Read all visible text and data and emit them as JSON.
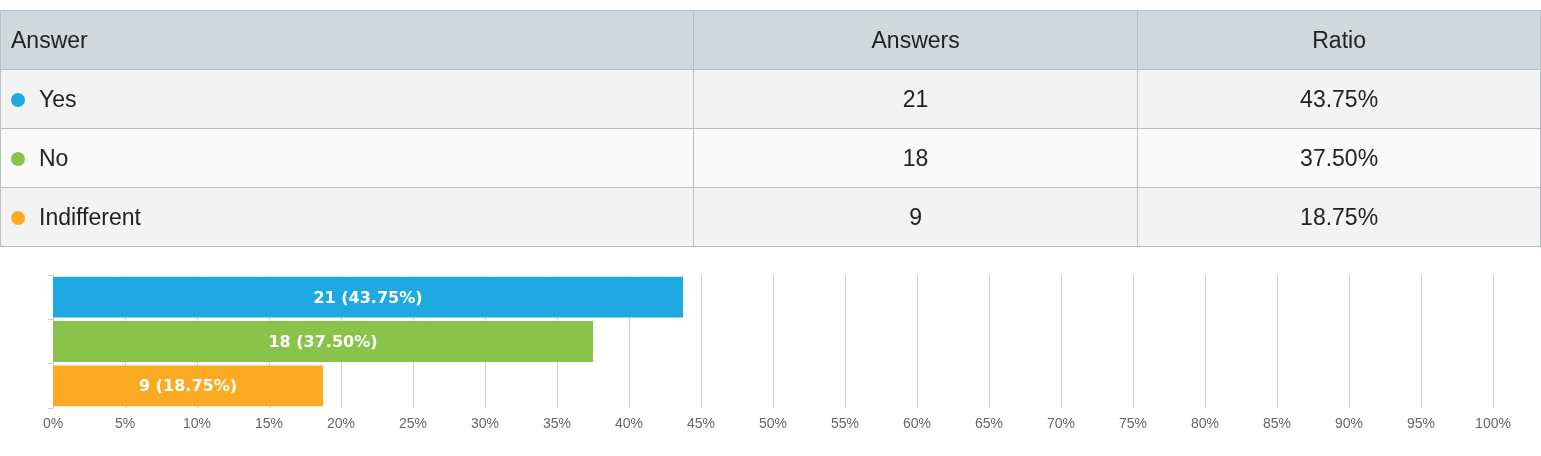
{
  "chart_data": [
    {
      "type": "other",
      "ylabel": "Answer",
      "data_labels": true,
      "categories": [
        "Yes",
        "No",
        "Indifferent"
      ],
      "colors": [
        "#1eaae1",
        "#8bc34a",
        "#fbab22"
      ],
      "series": [
        {
          "name": "Answers",
          "colors": [
            "#f3f3f3",
            "#fafafa",
            "#f3f3f3"
          ],
          "values": [
            21,
            18,
            9
          ]
        },
        {
          "name": "Ratio",
          "colors": [
            "#f3f3f3",
            "#fafafa",
            "#f3f3f3"
          ],
          "values": [
            43.75,
            37.5,
            18.75
          ],
          "value_labels": [
            "43.75%",
            "37.50%",
            "18.75%"
          ]
        }
      ]
    },
    {
      "type": "bar",
      "orientation": "horizontal",
      "categories": [
        null,
        null,
        null
      ],
      "tick_labels": "x",
      "grid": "x",
      "series": [
        {
          "colors": [
            "#1eaae1",
            "#8bc34a",
            "#fbab22"
          ],
          "values": [
            43.75,
            37.5,
            18.75
          ],
          "value_labels": [
            "21 (43.75%)",
            "18 (37.50%)",
            "9 (18.75%)"
          ]
        }
      ],
      "xlim": [
        0,
        100
      ],
      "xticks": [
        {
          "value": 0,
          "label": "0%"
        },
        {
          "value": 5,
          "label": "5%"
        },
        {
          "value": 10,
          "label": "10%"
        },
        {
          "value": 15,
          "label": "15%"
        },
        {
          "value": 20,
          "label": "20%"
        },
        {
          "value": 25,
          "label": "25%"
        },
        {
          "value": 30,
          "label": "30%"
        },
        {
          "value": 35,
          "label": "35%"
        },
        {
          "value": 40,
          "label": "40%"
        },
        {
          "value": 45,
          "label": "45%"
        },
        {
          "value": 50,
          "label": "50%"
        },
        {
          "value": 55,
          "label": "55%"
        },
        {
          "value": 60,
          "label": "60%"
        },
        {
          "value": 65,
          "label": "65%"
        },
        {
          "value": 70,
          "label": "70%"
        },
        {
          "value": 75,
          "label": "75%"
        },
        {
          "value": 80,
          "label": "80%"
        },
        {
          "value": 85,
          "label": "85%"
        },
        {
          "value": 90,
          "label": "90%"
        },
        {
          "value": 95,
          "label": "95%"
        },
        {
          "value": 100,
          "label": "100%"
        }
      ]
    }
  ]
}
